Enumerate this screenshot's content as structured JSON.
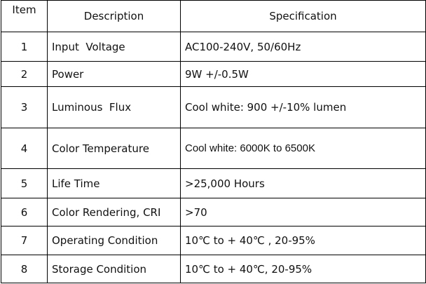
{
  "table": {
    "header": [
      "Item",
      "Description",
      "Specification"
    ],
    "rows": [
      [
        "1",
        "Input  Voltage",
        "AC100-240V, 50/60Hz"
      ],
      [
        "2",
        "Power",
        "9W +/-0.5W"
      ],
      [
        "3",
        "Luminous  Flux",
        "Cool white: 900 +/-10% lumen"
      ],
      [
        "4",
        "Color Temperature",
        "Cool white: 6000K to 6500K"
      ],
      [
        "5",
        "Life Time",
        ">25,000 Hours"
      ],
      [
        "6",
        "Color Rendering, CRI",
        ">70"
      ],
      [
        "7",
        "Operating Condition",
        "10℃ to + 40℃ , 20-95%"
      ],
      [
        "8",
        "Storage Condition",
        "10℃ to + 40℃, 20-95%"
      ]
    ]
  }
}
